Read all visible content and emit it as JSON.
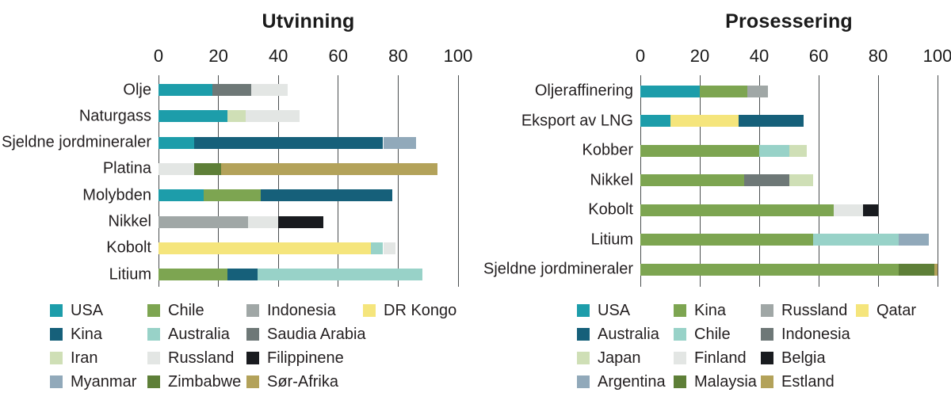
{
  "palette": {
    "teal": "#1d9daa",
    "dark_blue": "#16607a",
    "pale_green": "#cfdfb6",
    "blue_gray": "#91a9ba",
    "olive_green": "#7da551",
    "light_teal": "#98d2c8",
    "light_gray": "#e3e6e4",
    "dark_green": "#5e7f38",
    "gray": "#a0a7a6",
    "dark_gray": "#6e7877",
    "black": "#191b1f",
    "khaki": "#b3a25a",
    "yellow": "#f5e57c"
  },
  "chart_data": [
    {
      "type": "stacked-bar",
      "orientation": "horizontal",
      "title": "Utvinning",
      "xlim": [
        0,
        100
      ],
      "x_ticks": [
        0,
        20,
        40,
        60,
        80,
        100
      ],
      "grid": true,
      "rows": [
        {
          "label": "Olje",
          "segments": [
            {
              "label": "USA",
              "value": 18,
              "color": "teal"
            },
            {
              "label": "Saudia Arabia",
              "value": 13,
              "color": "dark_gray"
            },
            {
              "label": "Russland",
              "value": 12,
              "color": "light_gray"
            }
          ]
        },
        {
          "label": "Naturgass",
          "segments": [
            {
              "label": "USA",
              "value": 23,
              "color": "teal"
            },
            {
              "label": "Iran",
              "value": 6,
              "color": "pale_green"
            },
            {
              "label": "Russland",
              "value": 18,
              "color": "light_gray"
            }
          ]
        },
        {
          "label": "Sjeldne jordmineraler",
          "segments": [
            {
              "label": "USA",
              "value": 12,
              "color": "teal"
            },
            {
              "label": "Kina",
              "value": 63,
              "color": "dark_blue"
            },
            {
              "label": "Myanmar",
              "value": 11,
              "color": "blue_gray"
            }
          ]
        },
        {
          "label": "Platina",
          "segments": [
            {
              "label": "Russland",
              "value": 12,
              "color": "light_gray"
            },
            {
              "label": "Zimbabwe",
              "value": 9,
              "color": "dark_green"
            },
            {
              "label": "Sør-Afrika",
              "value": 72,
              "color": "khaki"
            }
          ]
        },
        {
          "label": "Molybden",
          "segments": [
            {
              "label": "USA",
              "value": 15,
              "color": "teal"
            },
            {
              "label": "Chile",
              "value": 19,
              "color": "olive_green"
            },
            {
              "label": "Kina",
              "value": 44,
              "color": "dark_blue"
            }
          ]
        },
        {
          "label": "Nikkel",
          "segments": [
            {
              "label": "Indonesia",
              "value": 30,
              "color": "gray"
            },
            {
              "label": "Russland",
              "value": 10,
              "color": "light_gray"
            },
            {
              "label": "Filippinene",
              "value": 15,
              "color": "black"
            }
          ]
        },
        {
          "label": "Kobolt",
          "segments": [
            {
              "label": "DR Kongo",
              "value": 71,
              "color": "yellow"
            },
            {
              "label": "Australia",
              "value": 4,
              "color": "light_teal"
            },
            {
              "label": "Russland",
              "value": 4,
              "color": "light_gray"
            }
          ]
        },
        {
          "label": "Litium",
          "segments": [
            {
              "label": "Chile",
              "value": 23,
              "color": "olive_green"
            },
            {
              "label": "Kina",
              "value": 10,
              "color": "dark_blue"
            },
            {
              "label": "Australia",
              "value": 55,
              "color": "light_teal"
            }
          ]
        }
      ],
      "legend": [
        [
          {
            "label": "USA",
            "color": "teal"
          },
          {
            "label": "Kina",
            "color": "dark_blue"
          },
          {
            "label": "Iran",
            "color": "pale_green"
          },
          {
            "label": "Myanmar",
            "color": "blue_gray"
          }
        ],
        [
          {
            "label": "Chile",
            "color": "olive_green"
          },
          {
            "label": "Australia",
            "color": "light_teal"
          },
          {
            "label": "Russland",
            "color": "light_gray"
          },
          {
            "label": "Zimbabwe",
            "color": "dark_green"
          }
        ],
        [
          {
            "label": "Indonesia",
            "color": "gray"
          },
          {
            "label": "Saudia Arabia",
            "color": "dark_gray"
          },
          {
            "label": "Filippinene",
            "color": "black"
          },
          {
            "label": "Sør-Afrika",
            "color": "khaki"
          }
        ],
        [
          {
            "label": "DR Kongo",
            "color": "yellow"
          }
        ]
      ]
    },
    {
      "type": "stacked-bar",
      "orientation": "horizontal",
      "title": "Prosessering",
      "xlim": [
        0,
        100
      ],
      "x_ticks": [
        0,
        20,
        40,
        60,
        80,
        100
      ],
      "grid": true,
      "rows": [
        {
          "label": "Oljeraffinering",
          "segments": [
            {
              "label": "USA",
              "value": 20,
              "color": "teal"
            },
            {
              "label": "Kina",
              "value": 16,
              "color": "olive_green"
            },
            {
              "label": "Russland",
              "value": 7,
              "color": "gray"
            }
          ]
        },
        {
          "label": "Eksport av LNG",
          "segments": [
            {
              "label": "USA",
              "value": 10,
              "color": "teal"
            },
            {
              "label": "Qatar",
              "value": 23,
              "color": "yellow"
            },
            {
              "label": "Australia",
              "value": 22,
              "color": "dark_blue"
            }
          ]
        },
        {
          "label": "Kobber",
          "segments": [
            {
              "label": "Kina",
              "value": 40,
              "color": "olive_green"
            },
            {
              "label": "Chile",
              "value": 10,
              "color": "light_teal"
            },
            {
              "label": "Japan",
              "value": 6,
              "color": "pale_green"
            }
          ]
        },
        {
          "label": "Nikkel",
          "segments": [
            {
              "label": "Kina",
              "value": 35,
              "color": "olive_green"
            },
            {
              "label": "Indonesia",
              "value": 15,
              "color": "dark_gray"
            },
            {
              "label": "Japan",
              "value": 8,
              "color": "pale_green"
            }
          ]
        },
        {
          "label": "Kobolt",
          "segments": [
            {
              "label": "Kina",
              "value": 65,
              "color": "olive_green"
            },
            {
              "label": "Finland",
              "value": 10,
              "color": "light_gray"
            },
            {
              "label": "Belgia",
              "value": 5,
              "color": "black"
            }
          ]
        },
        {
          "label": "Litium",
          "segments": [
            {
              "label": "Kina",
              "value": 58,
              "color": "olive_green"
            },
            {
              "label": "Chile",
              "value": 29,
              "color": "light_teal"
            },
            {
              "label": "Argentina",
              "value": 10,
              "color": "blue_gray"
            }
          ]
        },
        {
          "label": "Sjeldne jordmineraler",
          "segments": [
            {
              "label": "Kina",
              "value": 87,
              "color": "olive_green"
            },
            {
              "label": "Malaysia",
              "value": 12,
              "color": "dark_green"
            },
            {
              "label": "Estland",
              "value": 1,
              "color": "khaki"
            }
          ]
        }
      ],
      "legend": [
        [
          {
            "label": "USA",
            "color": "teal"
          },
          {
            "label": "Australia",
            "color": "dark_blue"
          },
          {
            "label": "Japan",
            "color": "pale_green"
          },
          {
            "label": "Argentina",
            "color": "blue_gray"
          }
        ],
        [
          {
            "label": "Kina",
            "color": "olive_green"
          },
          {
            "label": "Chile",
            "color": "light_teal"
          },
          {
            "label": "Finland",
            "color": "light_gray"
          },
          {
            "label": "Malaysia",
            "color": "dark_green"
          }
        ],
        [
          {
            "label": "Russland",
            "color": "gray"
          },
          {
            "label": "Indonesia",
            "color": "dark_gray"
          },
          {
            "label": "Belgia",
            "color": "black"
          },
          {
            "label": "Estland",
            "color": "khaki"
          }
        ],
        [
          {
            "label": "Qatar",
            "color": "yellow"
          }
        ]
      ]
    }
  ]
}
